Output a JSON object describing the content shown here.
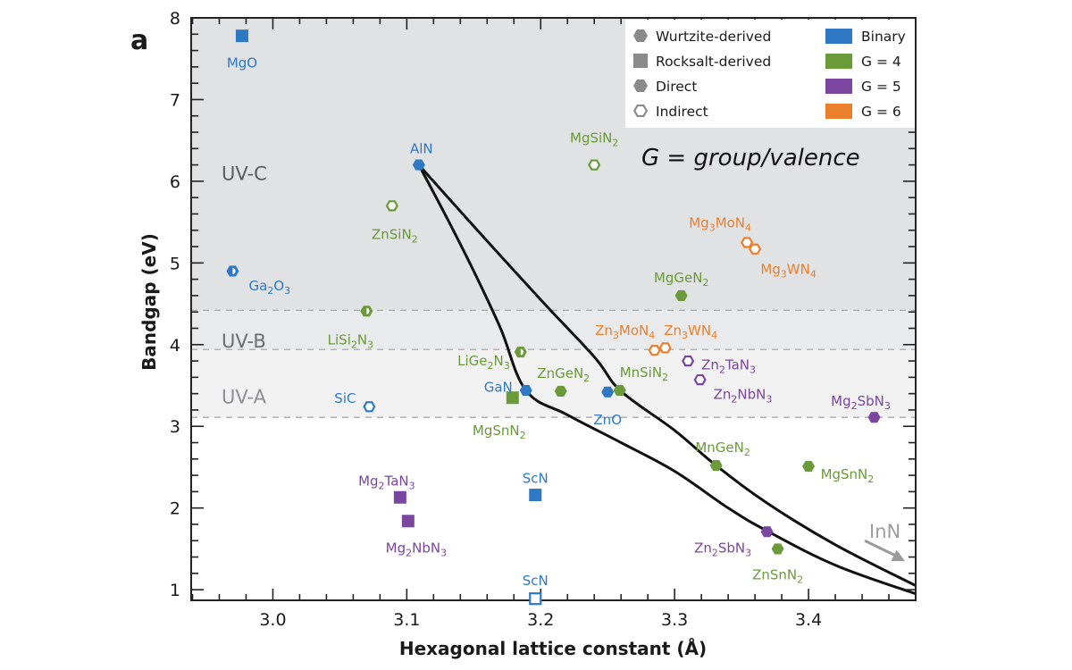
{
  "panel_label": "a",
  "colors": {
    "Binary": "#2f78c4",
    "G4": "#6a9a3a",
    "G5": "#7b46a0",
    "G6": "#ea7f2c",
    "uvc_band": "#e1e2e3",
    "uvb_band": "#e9eaeb",
    "uva_band": "#f2f2f3",
    "curve": "#111111",
    "inn_arrow": "#9a9a9a"
  },
  "chart_data": {
    "type": "scatter",
    "title": "",
    "xlabel": "Hexagonal lattice constant (Å)",
    "ylabel": "Bandgap (eV)",
    "xlim": [
      2.939,
      3.48
    ],
    "ylim": [
      0.87,
      8.0
    ],
    "xticks": [
      3.0,
      3.1,
      3.2,
      3.3,
      3.4
    ],
    "xtick_labels": [
      "3.0",
      "3.1",
      "3.2",
      "3.3",
      "3.4"
    ],
    "yticks": [
      1,
      2,
      3,
      4,
      5,
      6,
      7,
      8
    ],
    "ytick_labels": [
      "1",
      "2",
      "3",
      "4",
      "5",
      "6",
      "7",
      "8"
    ],
    "x_minor_step": 0.02,
    "y_minor_step": 0.2,
    "grid": false,
    "bands": [
      {
        "name": "UV-C",
        "ymin": 4.42,
        "ymax": 8.0,
        "color_key": "uvc_band",
        "label_color": "#5a5d63"
      },
      {
        "name": "UV-B",
        "ymin": 3.94,
        "ymax": 4.42,
        "color_key": "uvb_band",
        "label_color": "#6b6e73"
      },
      {
        "name": "UV-A",
        "ymin": 3.11,
        "ymax": 3.94,
        "color_key": "uva_band",
        "label_color": "#8c8f94"
      }
    ],
    "legend": {
      "placement": "top-right",
      "shapes": [
        {
          "label": "Wurtzite-derived",
          "marker": "hexagon",
          "fill": "filled"
        },
        {
          "label": "Rocksalt-derived",
          "marker": "square",
          "fill": "filled"
        },
        {
          "label": "Direct",
          "marker": "hexagon",
          "fill": "filled"
        },
        {
          "label": "Indirect",
          "marker": "hexagon",
          "fill": "hollow"
        }
      ],
      "colors": [
        {
          "label": "Binary",
          "color_key": "Binary"
        },
        {
          "label": "G = 4",
          "color_key": "G4"
        },
        {
          "label": "G = 5",
          "color_key": "G5"
        },
        {
          "label": "G = 6",
          "color_key": "G6"
        }
      ]
    },
    "annotation": "G = group/valence",
    "inn_label": "InN",
    "points": [
      {
        "label": "MgO",
        "sub": "",
        "x": 2.977,
        "y": 7.78,
        "group": "Binary",
        "marker": "square",
        "fill": "filled",
        "lx": 0.0,
        "ly": -0.33,
        "anchor": "middle"
      },
      {
        "label": "AlN",
        "sub": "",
        "x": 3.109,
        "y": 6.2,
        "group": "Binary",
        "marker": "hexagon",
        "fill": "filled",
        "lx": 0.002,
        "ly": 0.2,
        "anchor": "middle"
      },
      {
        "label": "MgSiN",
        "sub": "2",
        "x": 3.24,
        "y": 6.2,
        "group": "G4",
        "marker": "hexagon",
        "fill": "hollow",
        "lx": 0.0,
        "ly": 0.33,
        "anchor": "middle"
      },
      {
        "label": "ZnSiN",
        "sub": "2",
        "x": 3.089,
        "y": 5.7,
        "group": "G4",
        "marker": "hexagon",
        "fill": "hollow",
        "lx": 0.002,
        "ly": -0.35,
        "anchor": "middle"
      },
      {
        "label": "Ga",
        "sub": "2",
        "label2": "O",
        "sub2": "3",
        "x": 2.97,
        "y": 4.9,
        "group": "Binary",
        "marker": "hexagon",
        "fill": "half",
        "lx": 0.012,
        "ly": -0.18,
        "anchor": "start"
      },
      {
        "label": "LiSi",
        "sub": "2",
        "label2": "N",
        "sub2": "3",
        "x": 3.07,
        "y": 4.41,
        "group": "G4",
        "marker": "hexagon",
        "fill": "half",
        "lx": -0.012,
        "ly": -0.35,
        "anchor": "middle"
      },
      {
        "label": "SiC",
        "sub": "",
        "x": 3.072,
        "y": 3.24,
        "group": "Binary",
        "marker": "hexagon",
        "fill": "hollow",
        "lx": -0.018,
        "ly": 0.1,
        "anchor": "middle"
      },
      {
        "label": "LiGe",
        "sub": "2",
        "label2": "N",
        "sub2": "3",
        "x": 3.185,
        "y": 3.91,
        "group": "G4",
        "marker": "hexagon",
        "fill": "half",
        "lx": -0.008,
        "ly": -0.11,
        "anchor": "end"
      },
      {
        "label": "GaN",
        "sub": "",
        "x": 3.189,
        "y": 3.44,
        "group": "Binary",
        "marker": "hexagon",
        "fill": "filled",
        "lx": -0.01,
        "ly": 0.04,
        "anchor": "end"
      },
      {
        "label": "MgSnN",
        "sub": "2",
        "x": 3.179,
        "y": 3.35,
        "group": "G4",
        "marker": "square",
        "fill": "filled",
        "lx": -0.01,
        "ly": -0.4,
        "anchor": "middle"
      },
      {
        "label": "ZnGeN",
        "sub": "2",
        "x": 3.215,
        "y": 3.43,
        "group": "G4",
        "marker": "hexagon",
        "fill": "filled",
        "lx": 0.002,
        "ly": 0.22,
        "anchor": "middle"
      },
      {
        "label": "ZnO",
        "sub": "",
        "x": 3.25,
        "y": 3.42,
        "group": "Binary",
        "marker": "hexagon",
        "fill": "filled",
        "lx": 0.0,
        "ly": -0.34,
        "anchor": "middle"
      },
      {
        "label": "MnSiN",
        "sub": "2",
        "x": 3.259,
        "y": 3.44,
        "group": "G4",
        "marker": "hexagon",
        "fill": "filled",
        "lx": 0.0,
        "ly": 0.22,
        "anchor": "start"
      },
      {
        "label": "Zn",
        "sub": "3",
        "label2": "MoN",
        "sub2": "4",
        "x": 3.285,
        "y": 3.93,
        "group": "G6",
        "marker": "hexagon",
        "fill": "hollow",
        "lx": -0.022,
        "ly": 0.24,
        "anchor": "middle"
      },
      {
        "label": "Zn",
        "sub": "3",
        "label2": "WN",
        "sub2": "4",
        "x": 3.293,
        "y": 3.96,
        "group": "G6",
        "marker": "hexagon",
        "fill": "hollow",
        "lx": 0.019,
        "ly": 0.21,
        "anchor": "middle"
      },
      {
        "label": "Zn",
        "sub": "2",
        "label2": "TaN",
        "sub2": "3",
        "x": 3.31,
        "y": 3.8,
        "group": "G5",
        "marker": "hexagon",
        "fill": "hollow",
        "lx": 0.01,
        "ly": -0.05,
        "anchor": "start"
      },
      {
        "label": "Zn",
        "sub": "2",
        "label2": "NbN",
        "sub2": "3",
        "x": 3.319,
        "y": 3.57,
        "group": "G5",
        "marker": "hexagon",
        "fill": "hollow",
        "lx": 0.01,
        "ly": -0.18,
        "anchor": "start"
      },
      {
        "label": "MgGeN",
        "sub": "2",
        "x": 3.305,
        "y": 4.6,
        "group": "G4",
        "marker": "hexagon",
        "fill": "filled",
        "lx": 0.0,
        "ly": 0.22,
        "anchor": "middle"
      },
      {
        "label": "Mg",
        "sub": "3",
        "label2": "MoN",
        "sub2": "4",
        "x": 3.354,
        "y": 5.25,
        "group": "G6",
        "marker": "hexagon",
        "fill": "hollow",
        "lx": -0.02,
        "ly": 0.24,
        "anchor": "middle"
      },
      {
        "label": "Mg",
        "sub": "3",
        "label2": "WN",
        "sub2": "4",
        "x": 3.36,
        "y": 5.17,
        "group": "G6",
        "marker": "hexagon",
        "fill": "hollow",
        "lx": 0.025,
        "ly": -0.25,
        "anchor": "middle"
      },
      {
        "label": "Mg",
        "sub": "2",
        "label2": "SbN",
        "sub2": "3",
        "x": 3.449,
        "y": 3.11,
        "group": "G5",
        "marker": "hexagon",
        "fill": "filled",
        "lx": -0.01,
        "ly": 0.2,
        "anchor": "middle"
      },
      {
        "label": "MnGeN",
        "sub": "2",
        "x": 3.331,
        "y": 2.52,
        "group": "G4",
        "marker": "hexagon",
        "fill": "filled",
        "lx": 0.005,
        "ly": 0.22,
        "anchor": "middle"
      },
      {
        "label": "MgSnN",
        "sub": "2",
        "x": 3.4,
        "y": 2.51,
        "group": "G4",
        "marker": "hexagon",
        "fill": "filled",
        "lx": 0.009,
        "ly": -0.1,
        "anchor": "start"
      },
      {
        "label": "Zn",
        "sub": "2",
        "label2": "SbN",
        "sub2": "3",
        "x": 3.369,
        "y": 1.71,
        "group": "G5",
        "marker": "hexagon",
        "fill": "filled",
        "lx": -0.033,
        "ly": -0.2,
        "anchor": "middle"
      },
      {
        "label": "ZnSnN",
        "sub": "2",
        "x": 3.377,
        "y": 1.5,
        "group": "G4",
        "marker": "hexagon",
        "fill": "filled",
        "lx": 0.0,
        "ly": -0.32,
        "anchor": "middle"
      },
      {
        "label": "Mg",
        "sub": "2",
        "label2": "TaN",
        "sub2": "3",
        "x": 3.095,
        "y": 2.13,
        "group": "G5",
        "marker": "square",
        "fill": "filled",
        "lx": -0.01,
        "ly": 0.2,
        "anchor": "middle"
      },
      {
        "label": "Mg",
        "sub": "2",
        "label2": "NbN",
        "sub2": "3",
        "x": 3.101,
        "y": 1.84,
        "group": "G5",
        "marker": "square",
        "fill": "filled",
        "lx": 0.006,
        "ly": -0.33,
        "anchor": "middle"
      },
      {
        "label": "ScN",
        "sub": "",
        "x": 3.196,
        "y": 2.16,
        "group": "Binary",
        "marker": "square",
        "fill": "filled",
        "lx": 0.0,
        "ly": 0.2,
        "anchor": "middle"
      },
      {
        "label": "ScN",
        "sub": "",
        "x": 3.196,
        "y": 0.89,
        "group": "Binary",
        "marker": "square",
        "fill": "hollow",
        "lx": 0.0,
        "ly": 0.22,
        "anchor": "middle"
      }
    ],
    "curves": [
      {
        "name": "AlN-GaN-InN alloy (lower)",
        "points": [
          [
            3.109,
            6.2
          ],
          [
            3.13,
            5.55
          ],
          [
            3.15,
            4.9
          ],
          [
            3.17,
            4.2
          ],
          [
            3.189,
            3.44
          ],
          [
            3.22,
            3.14
          ],
          [
            3.26,
            2.8
          ],
          [
            3.3,
            2.45
          ],
          [
            3.34,
            2.0
          ],
          [
            3.369,
            1.72
          ],
          [
            3.42,
            1.3
          ],
          [
            3.48,
            0.95
          ]
        ]
      },
      {
        "name": "AlN-InN alloy (upper)",
        "points": [
          [
            3.109,
            6.2
          ],
          [
            3.15,
            5.45
          ],
          [
            3.2,
            4.55
          ],
          [
            3.24,
            3.85
          ],
          [
            3.26,
            3.43
          ],
          [
            3.3,
            2.95
          ],
          [
            3.331,
            2.52
          ],
          [
            3.37,
            2.05
          ],
          [
            3.42,
            1.55
          ],
          [
            3.48,
            1.05
          ]
        ]
      }
    ],
    "inn_arrow": {
      "from": [
        3.442,
        1.6
      ],
      "to": [
        3.472,
        1.35
      ]
    }
  }
}
